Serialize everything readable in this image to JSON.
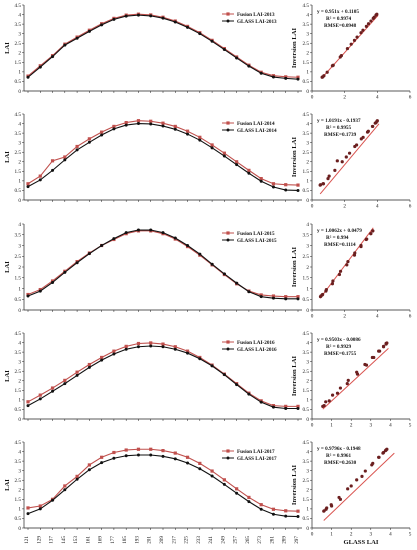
{
  "figure": {
    "left_ylabel": "LAI",
    "right_ylabel": "Inversion LAI",
    "right_xlabel": "GLASS LAI",
    "colors": {
      "fusion": "#c0504d",
      "glass": "#111111",
      "fit": "#d9534f",
      "scatter": "#6b1f1f"
    }
  },
  "chart_data": [
    {
      "type": "line",
      "year": "2013",
      "x": [
        121,
        129,
        137,
        145,
        153,
        161,
        169,
        177,
        185,
        193,
        201,
        209,
        217,
        225,
        233,
        241,
        249,
        257,
        265,
        273,
        281,
        289,
        297
      ],
      "xticks": [
        121,
        129,
        137,
        145,
        153,
        161,
        169,
        177,
        185,
        193,
        201,
        209,
        217,
        225,
        233,
        241,
        249,
        257,
        265,
        273,
        281,
        289,
        297
      ],
      "ylim": [
        0,
        4.5
      ],
      "yticks": [
        "0",
        "0.5",
        "1",
        "1.5",
        "2",
        "2.5",
        "3",
        "3.5",
        "4",
        "4.5"
      ],
      "ylabel": "LAI",
      "legend": "top-right",
      "series": [
        {
          "name": "Fusion LAI-2013",
          "values": [
            0.78,
            1.32,
            1.85,
            2.45,
            2.82,
            3.18,
            3.52,
            3.8,
            3.97,
            4.02,
            3.98,
            3.86,
            3.66,
            3.38,
            3.05,
            2.65,
            2.22,
            1.78,
            1.35,
            0.98,
            0.8,
            0.74,
            0.72
          ]
        },
        {
          "name": "GLASS LAI-2013",
          "values": [
            0.72,
            1.25,
            1.8,
            2.4,
            2.76,
            3.12,
            3.46,
            3.75,
            3.92,
            3.97,
            3.93,
            3.81,
            3.61,
            3.33,
            3.0,
            2.6,
            2.17,
            1.73,
            1.3,
            0.93,
            0.73,
            0.66,
            0.62
          ]
        }
      ]
    },
    {
      "type": "line",
      "year": "2014",
      "x": [
        121,
        129,
        137,
        145,
        153,
        161,
        169,
        177,
        185,
        193,
        201,
        209,
        217,
        225,
        233,
        241,
        249,
        257,
        265,
        273,
        281,
        289,
        297
      ],
      "ylim": [
        0,
        4.5
      ],
      "yticks": [
        "0",
        "0.5",
        "1",
        "1.5",
        "2",
        "2.5",
        "3",
        "3.5",
        "4",
        "4.5"
      ],
      "ylabel": "LAI",
      "legend": "top-right",
      "series": [
        {
          "name": "Fusion LAI-2014",
          "values": [
            0.85,
            1.25,
            2.05,
            2.25,
            2.8,
            3.2,
            3.55,
            3.85,
            4.05,
            4.15,
            4.12,
            4.02,
            3.85,
            3.6,
            3.28,
            2.88,
            2.45,
            2.0,
            1.55,
            1.12,
            0.85,
            0.8,
            0.78
          ]
        },
        {
          "name": "GLASS LAI-2014",
          "values": [
            0.7,
            1.05,
            1.55,
            2.1,
            2.62,
            3.02,
            3.4,
            3.72,
            3.92,
            4.0,
            3.98,
            3.87,
            3.7,
            3.45,
            3.13,
            2.73,
            2.3,
            1.85,
            1.4,
            0.98,
            0.68,
            0.52,
            0.5
          ]
        }
      ]
    },
    {
      "type": "line",
      "year": "2015",
      "x": [
        121,
        129,
        137,
        145,
        153,
        161,
        169,
        177,
        185,
        193,
        201,
        209,
        217,
        225,
        233,
        241,
        249,
        257,
        265,
        273,
        281,
        289,
        297
      ],
      "ylim": [
        0,
        4.0
      ],
      "yticks": [
        "0",
        "0.5",
        "1",
        "1.5",
        "2",
        "2.5",
        "3",
        "3.5",
        "4"
      ],
      "ylabel": "LAI",
      "legend": "top-right",
      "series": [
        {
          "name": "Fusion LAI-2015",
          "values": [
            0.72,
            0.95,
            1.35,
            1.8,
            2.25,
            2.65,
            3.0,
            3.28,
            3.55,
            3.68,
            3.68,
            3.55,
            3.3,
            2.95,
            2.55,
            2.1,
            1.65,
            1.22,
            0.88,
            0.7,
            0.65,
            0.62,
            0.62
          ]
        },
        {
          "name": "GLASS LAI-2015",
          "values": [
            0.65,
            0.88,
            1.28,
            1.75,
            2.2,
            2.62,
            3.0,
            3.32,
            3.6,
            3.72,
            3.72,
            3.6,
            3.35,
            3.0,
            2.6,
            2.13,
            1.68,
            1.25,
            0.85,
            0.62,
            0.55,
            0.52,
            0.52
          ]
        }
      ]
    },
    {
      "type": "line",
      "year": "2016",
      "x": [
        121,
        129,
        137,
        145,
        153,
        161,
        169,
        177,
        185,
        193,
        201,
        209,
        217,
        225,
        233,
        241,
        249,
        257,
        265,
        273,
        281,
        289,
        297
      ],
      "ylim": [
        0,
        4.5
      ],
      "yticks": [
        "0",
        "0.5",
        "1",
        "1.5",
        "2",
        "2.5",
        "3",
        "3.5",
        "4",
        "4.5"
      ],
      "ylabel": "LAI",
      "legend": "top-right",
      "series": [
        {
          "name": "Fusion LAI-2016",
          "values": [
            0.9,
            1.25,
            1.62,
            2.02,
            2.45,
            2.85,
            3.22,
            3.55,
            3.8,
            3.95,
            3.98,
            3.92,
            3.78,
            3.55,
            3.22,
            2.82,
            2.35,
            1.85,
            1.35,
            0.95,
            0.7,
            0.66,
            0.66
          ]
        },
        {
          "name": "GLASS LAI-2016",
          "values": [
            0.7,
            1.05,
            1.45,
            1.85,
            2.28,
            2.7,
            3.08,
            3.4,
            3.65,
            3.78,
            3.82,
            3.78,
            3.65,
            3.45,
            3.15,
            2.78,
            2.32,
            1.8,
            1.3,
            0.88,
            0.62,
            0.55,
            0.55
          ]
        }
      ]
    },
    {
      "type": "line",
      "year": "2017",
      "x": [
        121,
        129,
        137,
        145,
        153,
        161,
        169,
        177,
        185,
        193,
        201,
        209,
        217,
        225,
        233,
        241,
        249,
        257,
        265,
        273,
        281,
        289,
        297
      ],
      "ylim": [
        0,
        4.5
      ],
      "yticks": [
        "0",
        "0.5",
        "1",
        "1.5",
        "2",
        "2.5",
        "3",
        "3.5",
        "4",
        "4.5"
      ],
      "ylabel": "LAI",
      "legend": "top-right",
      "series": [
        {
          "name": "Fusion LAI-2017",
          "values": [
            1.05,
            1.15,
            1.5,
            2.2,
            2.7,
            3.3,
            3.7,
            3.95,
            4.08,
            4.12,
            4.12,
            4.05,
            3.92,
            3.7,
            3.38,
            2.98,
            2.52,
            2.05,
            1.6,
            1.22,
            0.98,
            0.9,
            0.88
          ]
        },
        {
          "name": "GLASS LAI-2017",
          "values": [
            0.75,
            1.0,
            1.45,
            2.0,
            2.55,
            3.05,
            3.42,
            3.65,
            3.78,
            3.82,
            3.82,
            3.75,
            3.62,
            3.4,
            3.1,
            2.72,
            2.28,
            1.82,
            1.38,
            0.98,
            0.72,
            0.62,
            0.6
          ]
        }
      ]
    },
    {
      "type": "scatter",
      "xlim": [
        0,
        6
      ],
      "xticks": [
        "0",
        "2",
        "4",
        "6"
      ],
      "ylim": [
        0,
        4.5
      ],
      "yticks": [
        "0",
        "0.5",
        "1",
        "1.5",
        "2",
        "2.5",
        "3",
        "3.5",
        "4",
        "4.5"
      ],
      "xlabel": "",
      "ylabel": "Inversion LAI",
      "equation": "y = 0.951x + 0.1105",
      "r2": "R² = 0.9974",
      "rmse": "RMSE=0.0948",
      "fit": {
        "slope": 0.951,
        "intercept": 0.1105,
        "x_range": [
          0.6,
          4.05
        ]
      },
      "points": [
        [
          0.62,
          0.72
        ],
        [
          0.66,
          0.74
        ],
        [
          0.73,
          0.8
        ],
        [
          0.93,
          0.98
        ],
        [
          1.25,
          1.32
        ],
        [
          1.3,
          1.35
        ],
        [
          1.73,
          1.78
        ],
        [
          1.8,
          1.85
        ],
        [
          2.17,
          2.22
        ],
        [
          2.4,
          2.45
        ],
        [
          2.6,
          2.65
        ],
        [
          2.76,
          2.82
        ],
        [
          3.0,
          3.05
        ],
        [
          3.12,
          3.18
        ],
        [
          3.33,
          3.38
        ],
        [
          3.46,
          3.52
        ],
        [
          3.61,
          3.66
        ],
        [
          3.75,
          3.8
        ],
        [
          3.81,
          3.86
        ],
        [
          3.92,
          3.97
        ],
        [
          3.93,
          3.98
        ],
        [
          3.97,
          4.02
        ]
      ]
    },
    {
      "type": "scatter",
      "xlim": [
        0,
        6
      ],
      "xticks": [
        "0",
        "2",
        "4",
        "6"
      ],
      "ylim": [
        0,
        4.5
      ],
      "yticks": [
        "0",
        "0.5",
        "1",
        "1.5",
        "2",
        "2.5",
        "3",
        "3.5",
        "4",
        "4.5"
      ],
      "xlabel": "",
      "ylabel": "Inversion LAI",
      "equation": "y = 1.0191x - 0.1937",
      "r2": "R² = 0.9955",
      "rmse": "RMSE=0.1739",
      "fit": {
        "slope": 1.0191,
        "intercept": -0.1937,
        "x_range": [
          0.5,
          4.1
        ]
      },
      "points": [
        [
          0.5,
          0.78
        ],
        [
          0.52,
          0.8
        ],
        [
          0.68,
          0.85
        ],
        [
          0.7,
          0.85
        ],
        [
          0.98,
          1.12
        ],
        [
          1.05,
          1.25
        ],
        [
          1.4,
          1.55
        ],
        [
          1.55,
          2.05
        ],
        [
          1.85,
          2.0
        ],
        [
          2.1,
          2.25
        ],
        [
          2.3,
          2.45
        ],
        [
          2.62,
          2.8
        ],
        [
          2.73,
          2.88
        ],
        [
          3.02,
          3.2
        ],
        [
          3.13,
          3.28
        ],
        [
          3.4,
          3.55
        ],
        [
          3.45,
          3.6
        ],
        [
          3.7,
          3.85
        ],
        [
          3.72,
          3.85
        ],
        [
          3.87,
          4.02
        ],
        [
          3.92,
          4.05
        ],
        [
          3.98,
          4.12
        ],
        [
          4.0,
          4.15
        ]
      ]
    },
    {
      "type": "scatter",
      "xlim": [
        0,
        6
      ],
      "xticks": [
        "0",
        "2",
        "4",
        "6"
      ],
      "ylim": [
        0,
        4.0
      ],
      "yticks": [
        "0",
        "0.5",
        "1",
        "1.5",
        "2",
        "2.5",
        "3",
        "3.5",
        "4"
      ],
      "xlabel": "",
      "ylabel": "Inversion LAI",
      "equation": "y = 1.0062x + 0.0479",
      "r2": "R² = 0.994",
      "rmse": "RMSE=0.1114",
      "fit": {
        "slope": 1.0062,
        "intercept": 0.0479,
        "x_range": [
          0.5,
          3.75
        ]
      },
      "points": [
        [
          0.52,
          0.62
        ],
        [
          0.55,
          0.65
        ],
        [
          0.62,
          0.7
        ],
        [
          0.65,
          0.72
        ],
        [
          0.85,
          0.88
        ],
        [
          0.88,
          0.95
        ],
        [
          1.25,
          1.22
        ],
        [
          1.28,
          1.35
        ],
        [
          1.68,
          1.65
        ],
        [
          1.75,
          1.8
        ],
        [
          2.13,
          2.1
        ],
        [
          2.2,
          2.25
        ],
        [
          2.6,
          2.55
        ],
        [
          2.62,
          2.65
        ],
        [
          3.0,
          2.95
        ],
        [
          3.0,
          3.0
        ],
        [
          3.32,
          3.28
        ],
        [
          3.35,
          3.3
        ],
        [
          3.6,
          3.55
        ],
        [
          3.6,
          3.55
        ],
        [
          3.72,
          3.68
        ],
        [
          3.72,
          3.68
        ]
      ]
    },
    {
      "type": "scatter",
      "xlim": [
        0,
        5
      ],
      "xticks": [
        "0",
        "1",
        "2",
        "3",
        "4",
        "5"
      ],
      "ylim": [
        0,
        4.5
      ],
      "yticks": [
        "0",
        "0.5",
        "1",
        "1.5",
        "2",
        "2.5",
        "3",
        "3.5",
        "4",
        "4.5"
      ],
      "xlabel": "",
      "ylabel": "Inversion LAI",
      "equation": "y = 0.9503x - 0.0086",
      "r2": "R² = 0.9929",
      "rmse": "RMSE=0.1755",
      "fit": {
        "slope": 0.9503,
        "intercept": -0.0086,
        "x_range": [
          0.55,
          3.9
        ]
      },
      "points": [
        [
          0.55,
          0.66
        ],
        [
          0.62,
          0.7
        ],
        [
          0.7,
          0.9
        ],
        [
          0.88,
          0.95
        ],
        [
          1.05,
          1.25
        ],
        [
          1.3,
          1.35
        ],
        [
          1.45,
          1.62
        ],
        [
          1.8,
          1.85
        ],
        [
          1.85,
          2.02
        ],
        [
          2.28,
          2.45
        ],
        [
          2.32,
          2.35
        ],
        [
          2.7,
          2.85
        ],
        [
          2.78,
          2.82
        ],
        [
          3.08,
          3.22
        ],
        [
          3.15,
          3.22
        ],
        [
          3.4,
          3.55
        ],
        [
          3.45,
          3.55
        ],
        [
          3.65,
          3.78
        ],
        [
          3.65,
          3.8
        ],
        [
          3.78,
          3.92
        ],
        [
          3.78,
          3.95
        ],
        [
          3.82,
          3.98
        ]
      ]
    },
    {
      "type": "scatter",
      "xlim": [
        0,
        5
      ],
      "xticks": [
        "0",
        "1",
        "2",
        "3",
        "4",
        "5"
      ],
      "ylim": [
        0,
        4.5
      ],
      "yticks": [
        "0",
        "0.5",
        "1",
        "1.5",
        "2",
        "2.5",
        "3",
        "3.5",
        "4",
        "4.5"
      ],
      "xlabel": "GLASS LAI",
      "ylabel": "Inversion LAI",
      "equation": "y = 0.9796x - 0.1948",
      "r2": "R² = 0.9961",
      "rmse": "RMSE=0.2630",
      "fit": {
        "slope": 0.9796,
        "intercept": -0.1948,
        "x_range": [
          0.6,
          4.2
        ]
      },
      "points": [
        [
          0.6,
          0.88
        ],
        [
          0.62,
          0.9
        ],
        [
          0.72,
          0.98
        ],
        [
          0.75,
          1.05
        ],
        [
          0.98,
          1.22
        ],
        [
          1.0,
          1.15
        ],
        [
          1.38,
          1.6
        ],
        [
          1.45,
          1.5
        ],
        [
          1.82,
          2.05
        ],
        [
          2.0,
          2.2
        ],
        [
          2.28,
          2.52
        ],
        [
          2.55,
          2.7
        ],
        [
          2.72,
          2.98
        ],
        [
          3.05,
          3.3
        ],
        [
          3.1,
          3.38
        ],
        [
          3.4,
          3.7
        ],
        [
          3.42,
          3.7
        ],
        [
          3.62,
          3.92
        ],
        [
          3.65,
          3.95
        ],
        [
          3.75,
          4.05
        ],
        [
          3.78,
          4.08
        ],
        [
          3.82,
          4.12
        ]
      ]
    }
  ]
}
